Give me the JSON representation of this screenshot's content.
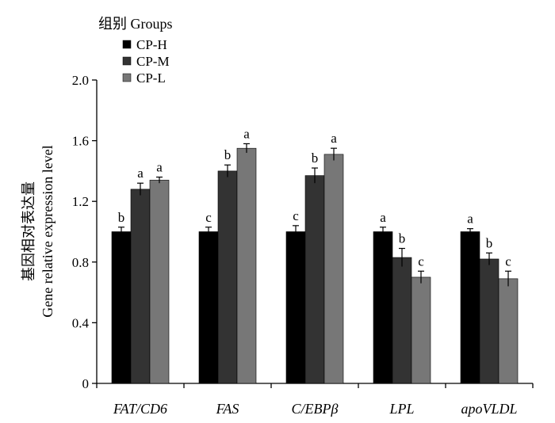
{
  "chart_data": {
    "type": "bar",
    "categories": [
      "FAT/CD6",
      "FAS",
      "C/EBPβ",
      "LPL",
      "apoVLDL"
    ],
    "series": [
      {
        "name": "CP-H",
        "color": "#000000",
        "values": [
          1.0,
          1.0,
          1.0,
          1.0,
          1.0
        ],
        "errors": [
          0.03,
          0.03,
          0.04,
          0.03,
          0.02
        ],
        "labels": [
          "b",
          "c",
          "c",
          "a",
          "a"
        ]
      },
      {
        "name": "CP-M",
        "color": "#333333",
        "values": [
          1.28,
          1.4,
          1.37,
          0.83,
          0.82
        ],
        "errors": [
          0.04,
          0.04,
          0.05,
          0.06,
          0.04
        ],
        "labels": [
          "a",
          "b",
          "b",
          "b",
          "b"
        ]
      },
      {
        "name": "CP-L",
        "color": "#777777",
        "values": [
          1.34,
          1.55,
          1.51,
          0.7,
          0.69
        ],
        "errors": [
          0.02,
          0.03,
          0.04,
          0.04,
          0.05
        ],
        "labels": [
          "a",
          "a",
          "a",
          "c",
          "c"
        ]
      }
    ],
    "legend_title": "组别 Groups",
    "ylabel_cn": "基因相对表达量",
    "ylabel_en": "Gene relative expression level",
    "ylim": [
      0,
      2.0
    ],
    "yticks": [
      "0",
      "0.4",
      "0.8",
      "1.2",
      "1.6",
      "2.0"
    ],
    "ytick_values": [
      0,
      0.4,
      0.8,
      1.2,
      1.6,
      2.0
    ],
    "grid": false,
    "legend_position": "top-left"
  }
}
